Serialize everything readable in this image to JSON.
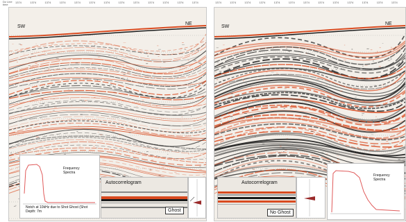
{
  "header": {
    "axis_label": "Dz Line",
    "axis_unit": "time",
    "left_ticks": [
      "1374",
      "1374",
      "1374",
      "1374",
      "1374",
      "1374",
      "1374",
      "1374",
      "1374",
      "1374",
      "1374",
      "1374",
      "1374"
    ],
    "right_ticks": [
      "1374",
      "1374",
      "1374",
      "1374",
      "1374",
      "1374",
      "1374",
      "1374",
      "1374",
      "1374",
      "1374",
      "1374",
      "1374"
    ]
  },
  "left_panel": {
    "sw_label": "SW",
    "ne_label": "NE",
    "spectra_title": "Frequency Spectra",
    "notch_note": "Notch at 10kHz due to Shot Ghost (Shot Depth: 7m",
    "autocorr_title": "Autocorrelogram",
    "ghost_label": "Ghost"
  },
  "right_panel": {
    "sw_label": "SW",
    "ne_label": "NE",
    "autocorr_title": "Autocorrelogram",
    "spectra_title": "Frequency Spectra",
    "no_ghost_label": "No Ghost"
  },
  "colors": {
    "reflector_dark": "#1a1a1a",
    "reflector_orange": "#d94a1f",
    "panel_bg": "#f3efe9",
    "spectrum_line": "#e05a5a"
  }
}
